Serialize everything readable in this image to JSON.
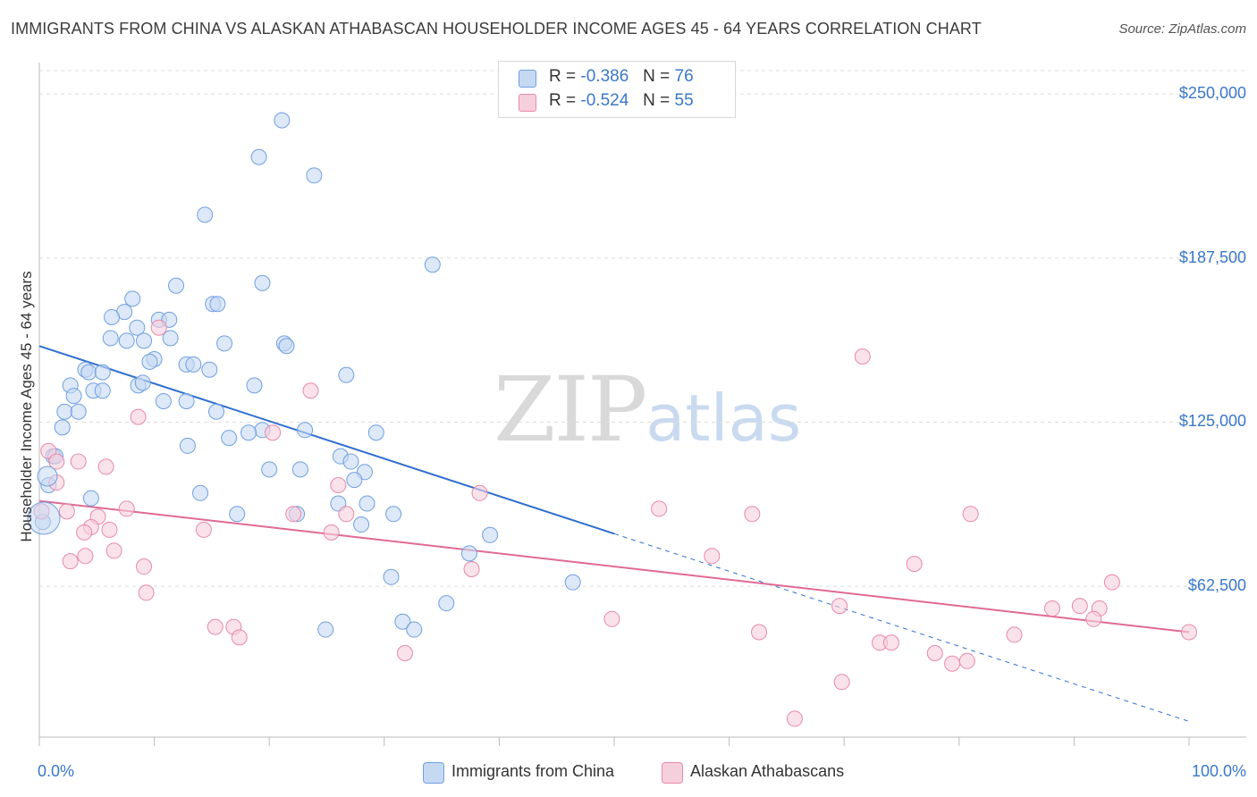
{
  "header": {
    "title": "IMMIGRANTS FROM CHINA VS ALASKAN ATHABASCAN HOUSEHOLDER INCOME AGES 45 - 64 YEARS CORRELATION CHART",
    "source": "Source: ZipAtlas.com"
  },
  "watermark": {
    "zip": "ZIP",
    "atlas": "atlas"
  },
  "legend": {
    "r_label": "R =",
    "n_label": "N =",
    "rows": [
      {
        "r": "-0.386",
        "n": "76"
      },
      {
        "r": "-0.524",
        "n": "55"
      }
    ]
  },
  "chart_data": {
    "type": "scatter",
    "title": "IMMIGRANTS FROM CHINA VS ALASKAN ATHABASCAN HOUSEHOLDER INCOME AGES 45 - 64 YEARS CORRELATION CHART",
    "xlabel": "",
    "ylabel": "Householder Income Ages 45 - 64 years",
    "xlim": [
      0,
      100
    ],
    "ylim": [
      5000,
      262000
    ],
    "grid": true,
    "x_tick_labels": [
      "0.0%",
      "100.0%"
    ],
    "y_ticks": [
      {
        "value": 62500,
        "label": "$62,500"
      },
      {
        "value": 125000,
        "label": "$125,000"
      },
      {
        "value": 187500,
        "label": "$187,500"
      },
      {
        "value": 250000,
        "label": "$250,000"
      }
    ],
    "series": [
      {
        "name": "Immigrants from China",
        "color": "#6fa0e0",
        "fill": "#c6d9f3",
        "line_color": "#2f6fd0",
        "trend": {
          "x_start": 0,
          "y_start": 154000,
          "x_end_solid": 50,
          "x_end": 100,
          "y_end": 11000
        },
        "points": [
          [
            21.1,
            240000
          ],
          [
            19.1,
            226000
          ],
          [
            23.9,
            219000
          ],
          [
            14.4,
            204000
          ],
          [
            34.2,
            185000
          ],
          [
            11.9,
            177000
          ],
          [
            19.4,
            178000
          ],
          [
            8.1,
            172000
          ],
          [
            15.1,
            170000
          ],
          [
            15.5,
            170000
          ],
          [
            7.4,
            167000
          ],
          [
            6.3,
            165000
          ],
          [
            10.4,
            164000
          ],
          [
            11.3,
            164000
          ],
          [
            8.5,
            161000
          ],
          [
            6.2,
            157000
          ],
          [
            7.6,
            156000
          ],
          [
            9.1,
            156000
          ],
          [
            11.4,
            157000
          ],
          [
            16.1,
            155000
          ],
          [
            21.3,
            155000
          ],
          [
            21.5,
            154000
          ],
          [
            10.0,
            149000
          ],
          [
            9.6,
            148000
          ],
          [
            12.8,
            147000
          ],
          [
            13.4,
            147000
          ],
          [
            14.8,
            145000
          ],
          [
            4.0,
            145000
          ],
          [
            4.3,
            144000
          ],
          [
            5.5,
            144000
          ],
          [
            26.7,
            143000
          ],
          [
            2.7,
            139000
          ],
          [
            8.6,
            139000
          ],
          [
            9.0,
            140000
          ],
          [
            18.7,
            139000
          ],
          [
            4.7,
            137000
          ],
          [
            5.5,
            137000
          ],
          [
            3.0,
            135000
          ],
          [
            10.8,
            133000
          ],
          [
            12.8,
            133000
          ],
          [
            2.2,
            129000
          ],
          [
            3.4,
            129000
          ],
          [
            15.4,
            129000
          ],
          [
            2.0,
            123000
          ],
          [
            19.4,
            122000
          ],
          [
            23.1,
            122000
          ],
          [
            29.3,
            121000
          ],
          [
            18.2,
            121000
          ],
          [
            16.5,
            119000
          ],
          [
            12.9,
            116000
          ],
          [
            1.2,
            112000
          ],
          [
            1.4,
            112000
          ],
          [
            26.2,
            112000
          ],
          [
            27.1,
            110000
          ],
          [
            20.0,
            107000
          ],
          [
            22.7,
            107000
          ],
          [
            28.3,
            106000
          ],
          [
            27.4,
            103000
          ],
          [
            0.8,
            101000
          ],
          [
            14.0,
            98000
          ],
          [
            4.5,
            96000
          ],
          [
            26.0,
            94000
          ],
          [
            28.5,
            94000
          ],
          [
            17.2,
            90000
          ],
          [
            22.4,
            90000
          ],
          [
            30.8,
            90000
          ],
          [
            28.0,
            86000
          ],
          [
            39.2,
            82000
          ],
          [
            37.4,
            75000
          ],
          [
            30.6,
            66000
          ],
          [
            46.4,
            64000
          ],
          [
            35.4,
            56000
          ],
          [
            31.6,
            49000
          ],
          [
            32.6,
            46000
          ],
          [
            24.9,
            46000
          ],
          [
            0.3,
            87000
          ]
        ]
      },
      {
        "name": "Alaskan Athabascans",
        "color": "#e889a8",
        "fill": "#f6cfdd",
        "line_color": "#e06a95",
        "trend": {
          "x_start": 0,
          "y_start": 95000,
          "x_end_solid": 100,
          "x_end": 100,
          "y_end": 45000
        },
        "points": [
          [
            10.4,
            161000
          ],
          [
            71.6,
            150000
          ],
          [
            23.6,
            137000
          ],
          [
            8.6,
            127000
          ],
          [
            0.8,
            114000
          ],
          [
            1.5,
            110000
          ],
          [
            20.3,
            121000
          ],
          [
            3.4,
            110000
          ],
          [
            5.8,
            108000
          ],
          [
            1.5,
            102000
          ],
          [
            26.0,
            101000
          ],
          [
            38.3,
            98000
          ],
          [
            53.9,
            92000
          ],
          [
            7.6,
            92000
          ],
          [
            2.4,
            91000
          ],
          [
            22.1,
            90000
          ],
          [
            26.7,
            90000
          ],
          [
            81.0,
            90000
          ],
          [
            62.0,
            90000
          ],
          [
            5.1,
            89000
          ],
          [
            4.5,
            85000
          ],
          [
            6.1,
            84000
          ],
          [
            14.3,
            84000
          ],
          [
            25.4,
            83000
          ],
          [
            3.9,
            83000
          ],
          [
            6.5,
            76000
          ],
          [
            4.0,
            74000
          ],
          [
            58.5,
            74000
          ],
          [
            2.7,
            72000
          ],
          [
            76.1,
            71000
          ],
          [
            9.1,
            70000
          ],
          [
            37.6,
            69000
          ],
          [
            93.3,
            64000
          ],
          [
            9.3,
            60000
          ],
          [
            69.6,
            55000
          ],
          [
            88.1,
            54000
          ],
          [
            90.5,
            55000
          ],
          [
            92.2,
            54000
          ],
          [
            49.8,
            50000
          ],
          [
            91.7,
            50000
          ],
          [
            15.3,
            47000
          ],
          [
            16.9,
            47000
          ],
          [
            17.4,
            43000
          ],
          [
            62.6,
            45000
          ],
          [
            84.8,
            44000
          ],
          [
            100.0,
            45000
          ],
          [
            73.1,
            41000
          ],
          [
            74.1,
            41000
          ],
          [
            31.8,
            37000
          ],
          [
            77.9,
            37000
          ],
          [
            79.4,
            33000
          ],
          [
            80.7,
            34000
          ],
          [
            69.8,
            26000
          ],
          [
            65.7,
            12000
          ],
          [
            0.2,
            91000
          ]
        ]
      }
    ]
  },
  "bottom_legend": {
    "items": [
      "Immigrants from China",
      "Alaskan Athabascans"
    ]
  }
}
